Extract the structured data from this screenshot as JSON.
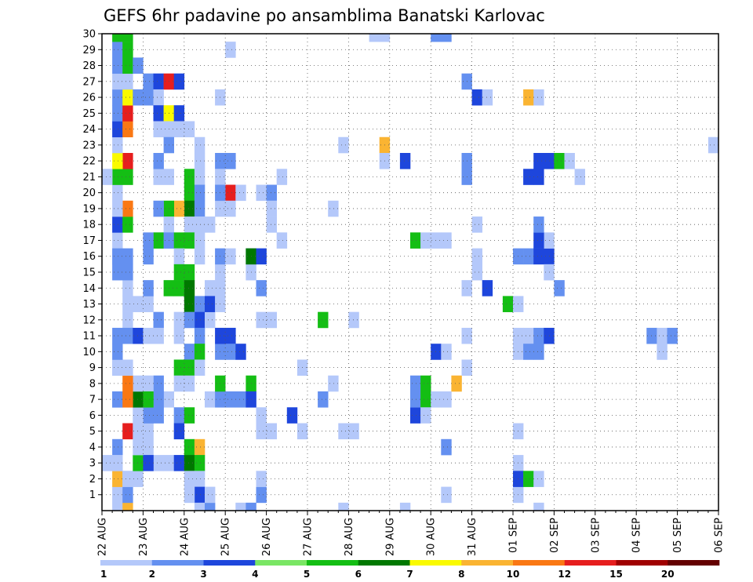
{
  "chart_data": {
    "type": "heatmap",
    "title": "GEFS 6hr padavine po ansamblima Banatski Karlovac",
    "x_tick_labels": [
      "22 AUG",
      "23 AUG",
      "24 AUG",
      "25 AUG",
      "26 AUG",
      "27 AUG",
      "28 AUG",
      "29 AUG",
      "30 AUG",
      "31 AUG",
      "01 SEP",
      "02 SEP",
      "03 SEP",
      "04 SEP",
      "05 SEP",
      "06 SEP"
    ],
    "y_tick_labels": [
      "1",
      "2",
      "3",
      "4",
      "5",
      "6",
      "7",
      "8",
      "9",
      "10",
      "11",
      "12",
      "13",
      "14",
      "15",
      "16",
      "17",
      "18",
      "19",
      "20",
      "21",
      "22",
      "23",
      "24",
      "25",
      "26",
      "27",
      "28",
      "29",
      "30"
    ],
    "time_steps_per_day": 4,
    "x_range_steps": [
      0,
      60
    ],
    "y_range_members": [
      0,
      30
    ],
    "grid": true,
    "legend": {
      "placement": "bottom",
      "colors": [
        "#b4c8fa",
        "#6490f0",
        "#1e46dc",
        "#7ae664",
        "#14be14",
        "#007800",
        "#fafa00",
        "#fab432",
        "#fa7814",
        "#e61e1e",
        "#a00000",
        "#640000"
      ],
      "labels": [
        "1",
        "2",
        "3",
        "4",
        "5",
        "6",
        "7",
        "8",
        "10",
        "12",
        "15",
        "20"
      ]
    },
    "cells": [
      [
        1,
        0,
        1
      ],
      [
        1,
        1,
        1
      ],
      [
        1,
        2,
        8
      ],
      [
        2,
        2,
        1
      ],
      [
        1,
        3,
        1
      ],
      [
        5,
        3,
        1
      ],
      [
        6,
        3,
        1
      ],
      [
        7,
        3,
        3
      ],
      [
        1,
        4,
        2
      ],
      [
        2,
        5,
        10
      ],
      [
        1,
        7,
        2
      ],
      [
        6,
        7,
        1
      ],
      [
        1,
        9,
        1
      ],
      [
        7,
        12,
        1
      ],
      [
        15,
        12,
        1
      ],
      [
        16,
        12,
        1
      ],
      [
        15,
        14,
        2
      ],
      [
        1,
        16,
        1
      ],
      [
        2,
        16,
        2
      ],
      [
        1,
        17,
        1
      ],
      [
        5,
        17,
        1
      ],
      [
        6,
        17,
        1
      ],
      [
        17,
        17,
        1
      ],
      [
        2,
        0,
        8
      ],
      [
        2,
        1,
        2
      ],
      [
        2,
        2,
        1
      ],
      [
        3,
        2,
        1
      ],
      [
        4,
        4,
        1
      ],
      [
        4,
        5,
        1
      ],
      [
        4,
        6,
        2
      ],
      [
        5,
        6,
        2
      ],
      [
        5,
        7,
        2
      ],
      [
        4,
        7,
        1
      ],
      [
        5,
        8,
        2
      ],
      [
        4,
        8,
        1
      ],
      [
        2,
        11,
        1
      ],
      [
        2,
        12,
        1
      ],
      [
        5,
        12,
        2
      ],
      [
        0,
        3,
        1
      ],
      [
        1,
        3,
        1
      ],
      [
        3,
        3,
        5
      ],
      [
        4,
        3,
        3
      ],
      [
        3,
        4,
        1
      ],
      [
        3,
        5,
        1
      ],
      [
        3,
        6,
        1
      ],
      [
        3,
        7,
        6
      ],
      [
        4,
        7,
        5
      ],
      [
        3,
        8,
        1
      ],
      [
        1,
        7,
        2
      ],
      [
        2,
        7,
        9
      ],
      [
        2,
        8,
        9
      ],
      [
        2,
        9,
        1
      ],
      [
        1,
        9,
        1
      ],
      [
        1,
        10,
        2
      ],
      [
        1,
        11,
        2
      ],
      [
        2,
        11,
        2
      ],
      [
        3,
        11,
        3
      ],
      [
        4,
        11,
        1
      ],
      [
        5,
        11,
        1
      ],
      [
        2,
        13,
        1
      ],
      [
        2,
        14,
        1
      ],
      [
        2,
        15,
        2
      ],
      [
        1,
        15,
        2
      ],
      [
        1,
        16,
        2
      ],
      [
        3,
        13,
        1
      ],
      [
        4,
        13,
        1
      ],
      [
        4,
        14,
        2
      ],
      [
        4,
        16,
        2
      ],
      [
        5,
        17,
        5
      ],
      [
        4,
        17,
        2
      ],
      [
        1,
        18,
        3
      ],
      [
        2,
        18,
        5
      ],
      [
        2,
        19,
        9
      ],
      [
        1,
        19,
        1
      ],
      [
        1,
        20,
        1
      ],
      [
        1,
        21,
        5
      ],
      [
        2,
        21,
        5
      ],
      [
        0,
        21,
        1
      ],
      [
        2,
        22,
        10
      ],
      [
        1,
        22,
        7
      ],
      [
        1,
        23,
        1
      ],
      [
        1,
        24,
        3
      ],
      [
        2,
        24,
        9
      ],
      [
        1,
        25,
        2
      ],
      [
        2,
        25,
        10
      ],
      [
        1,
        26,
        2
      ],
      [
        2,
        26,
        7
      ],
      [
        1,
        27,
        1
      ],
      [
        2,
        27,
        1
      ],
      [
        1,
        28,
        2
      ],
      [
        2,
        28,
        5
      ],
      [
        3,
        28,
        2
      ],
      [
        1,
        29,
        2
      ],
      [
        2,
        29,
        5
      ],
      [
        1,
        30,
        5
      ],
      [
        2,
        30,
        5
      ],
      [
        3,
        26,
        2
      ],
      [
        4,
        26,
        2
      ],
      [
        4,
        27,
        2
      ],
      [
        5,
        27,
        3
      ],
      [
        6,
        27,
        10
      ],
      [
        7,
        27,
        3
      ],
      [
        5,
        26,
        1
      ],
      [
        5,
        25,
        3
      ],
      [
        6,
        25,
        7
      ],
      [
        7,
        25,
        3
      ],
      [
        5,
        24,
        1
      ],
      [
        6,
        24,
        1
      ],
      [
        7,
        24,
        1
      ],
      [
        8,
        24,
        1
      ],
      [
        6,
        23,
        2
      ],
      [
        5,
        21,
        1
      ],
      [
        6,
        21,
        1
      ],
      [
        8,
        21,
        5
      ],
      [
        9,
        21,
        1
      ],
      [
        8,
        20,
        5
      ],
      [
        9,
        20,
        2
      ],
      [
        8,
        19,
        6
      ],
      [
        9,
        19,
        2
      ],
      [
        7,
        19,
        8
      ],
      [
        6,
        19,
        5
      ],
      [
        5,
        19,
        2
      ],
      [
        8,
        18,
        1
      ],
      [
        9,
        18,
        1
      ],
      [
        6,
        18,
        1
      ],
      [
        5,
        22,
        2
      ],
      [
        9,
        22,
        1
      ],
      [
        9,
        23,
        1
      ],
      [
        6,
        17,
        2
      ],
      [
        7,
        17,
        5
      ],
      [
        8,
        17,
        5
      ],
      [
        9,
        17,
        1
      ],
      [
        7,
        16,
        1
      ],
      [
        9,
        16,
        1
      ],
      [
        7,
        15,
        5
      ],
      [
        8,
        15,
        5
      ],
      [
        7,
        14,
        5
      ],
      [
        8,
        14,
        6
      ],
      [
        6,
        14,
        5
      ],
      [
        8,
        13,
        6
      ],
      [
        9,
        13,
        2
      ],
      [
        9,
        12,
        3
      ],
      [
        8,
        12,
        2
      ],
      [
        10,
        12,
        1
      ],
      [
        7,
        11,
        1
      ],
      [
        9,
        11,
        2
      ],
      [
        8,
        10,
        2
      ],
      [
        9,
        10,
        5
      ],
      [
        7,
        9,
        5
      ],
      [
        8,
        9,
        5
      ],
      [
        9,
        9,
        1
      ],
      [
        7,
        8,
        1
      ],
      [
        8,
        8,
        1
      ],
      [
        7,
        6,
        2
      ],
      [
        8,
        6,
        5
      ],
      [
        7,
        5,
        3
      ],
      [
        8,
        4,
        5
      ],
      [
        9,
        4,
        8
      ],
      [
        8,
        3,
        6
      ],
      [
        9,
        3,
        5
      ],
      [
        8,
        2,
        1
      ],
      [
        9,
        2,
        1
      ],
      [
        9,
        1,
        3
      ],
      [
        8,
        1,
        1
      ],
      [
        9,
        0,
        1
      ],
      [
        10,
        0,
        2
      ],
      [
        10,
        1,
        1
      ],
      [
        10,
        14,
        1
      ],
      [
        11,
        14,
        1
      ],
      [
        11,
        15,
        1
      ],
      [
        11,
        16,
        2
      ],
      [
        10,
        18,
        1
      ],
      [
        11,
        19,
        1
      ],
      [
        11,
        22,
        2
      ],
      [
        12,
        22,
        2
      ],
      [
        11,
        21,
        1
      ],
      [
        12,
        29,
        1
      ],
      [
        11,
        26,
        1
      ],
      [
        10,
        7,
        1
      ],
      [
        11,
        7,
        2
      ],
      [
        12,
        7,
        2
      ],
      [
        11,
        8,
        5
      ],
      [
        11,
        10,
        2
      ],
      [
        11,
        11,
        3
      ],
      [
        12,
        11,
        3
      ],
      [
        10,
        13,
        3
      ],
      [
        11,
        13,
        1
      ],
      [
        12,
        20,
        10
      ],
      [
        11,
        20,
        2
      ],
      [
        13,
        20,
        1
      ],
      [
        12,
        19,
        1
      ],
      [
        12,
        16,
        1
      ],
      [
        14,
        16,
        2
      ],
      [
        15,
        20,
        1
      ],
      [
        16,
        20,
        2
      ],
      [
        17,
        21,
        1
      ],
      [
        16,
        18,
        1
      ],
      [
        16,
        19,
        1
      ],
      [
        14,
        15,
        1
      ],
      [
        14,
        16,
        6
      ],
      [
        15,
        16,
        3
      ],
      [
        12,
        10,
        2
      ],
      [
        13,
        10,
        3
      ],
      [
        14,
        7,
        1
      ],
      [
        14,
        8,
        5
      ],
      [
        13,
        7,
        2
      ],
      [
        14,
        7,
        3
      ],
      [
        13,
        0,
        1
      ],
      [
        14,
        0,
        2
      ],
      [
        15,
        1,
        2
      ],
      [
        15,
        2,
        1
      ],
      [
        15,
        5,
        1
      ],
      [
        16,
        5,
        1
      ],
      [
        15,
        6,
        1
      ],
      [
        22,
        19,
        1
      ],
      [
        21,
        7,
        2
      ],
      [
        22,
        8,
        1
      ],
      [
        21,
        12,
        5
      ],
      [
        24,
        12,
        1
      ],
      [
        19,
        9,
        1
      ],
      [
        18,
        6,
        3
      ],
      [
        19,
        5,
        1
      ],
      [
        23,
        0,
        1
      ],
      [
        29,
        0,
        1
      ],
      [
        23,
        5,
        1
      ],
      [
        24,
        5,
        1
      ],
      [
        23,
        23,
        1
      ],
      [
        27,
        23,
        8
      ],
      [
        27,
        22,
        1
      ],
      [
        27,
        30,
        1
      ],
      [
        26,
        30,
        1
      ],
      [
        29,
        22,
        3
      ],
      [
        30,
        6,
        3
      ],
      [
        30,
        7,
        2
      ],
      [
        30,
        8,
        2
      ],
      [
        31,
        8,
        5
      ],
      [
        31,
        7,
        5
      ],
      [
        32,
        7,
        1
      ],
      [
        33,
        7,
        1
      ],
      [
        31,
        6,
        1
      ],
      [
        30,
        17,
        5
      ],
      [
        31,
        17,
        1
      ],
      [
        32,
        17,
        1
      ],
      [
        33,
        17,
        1
      ],
      [
        32,
        30,
        2
      ],
      [
        33,
        30,
        2
      ],
      [
        33,
        4,
        2
      ],
      [
        33,
        1,
        1
      ],
      [
        34,
        8,
        8
      ],
      [
        32,
        10,
        3
      ],
      [
        33,
        10,
        1
      ],
      [
        35,
        9,
        1
      ],
      [
        35,
        11,
        1
      ],
      [
        35,
        14,
        1
      ],
      [
        35,
        21,
        2
      ],
      [
        35,
        22,
        2
      ],
      [
        35,
        27,
        2
      ],
      [
        36,
        26,
        3
      ],
      [
        36,
        15,
        1
      ],
      [
        36,
        16,
        1
      ],
      [
        37,
        14,
        3
      ],
      [
        36,
        18,
        1
      ],
      [
        37,
        26,
        1
      ],
      [
        39,
        13,
        5
      ],
      [
        40,
        13,
        1
      ],
      [
        40,
        3,
        1
      ],
      [
        40,
        5,
        1
      ],
      [
        40,
        1,
        1
      ],
      [
        40,
        2,
        3
      ],
      [
        41,
        2,
        5
      ],
      [
        42,
        2,
        1
      ],
      [
        40,
        10,
        1
      ],
      [
        40,
        11,
        1
      ],
      [
        41,
        26,
        8
      ],
      [
        42,
        26,
        1
      ],
      [
        40,
        16,
        2
      ],
      [
        41,
        16,
        2
      ],
      [
        42,
        16,
        3
      ],
      [
        43,
        16,
        3
      ],
      [
        43,
        17,
        1
      ],
      [
        42,
        17,
        3
      ],
      [
        42,
        18,
        2
      ],
      [
        43,
        15,
        1
      ],
      [
        41,
        21,
        3
      ],
      [
        42,
        21,
        3
      ],
      [
        42,
        22,
        3
      ],
      [
        43,
        22,
        3
      ],
      [
        44,
        22,
        5
      ],
      [
        45,
        22,
        1
      ],
      [
        42,
        0,
        1
      ],
      [
        41,
        11,
        1
      ],
      [
        41,
        10,
        2
      ],
      [
        42,
        10,
        2
      ],
      [
        42,
        11,
        2
      ],
      [
        43,
        11,
        3
      ],
      [
        44,
        14,
        2
      ],
      [
        46,
        21,
        1
      ],
      [
        53,
        11,
        2
      ],
      [
        54,
        11,
        1
      ],
      [
        55,
        11,
        2
      ],
      [
        54,
        10,
        1
      ],
      [
        59,
        23,
        1
      ],
      [
        60,
        23,
        1
      ]
    ]
  }
}
